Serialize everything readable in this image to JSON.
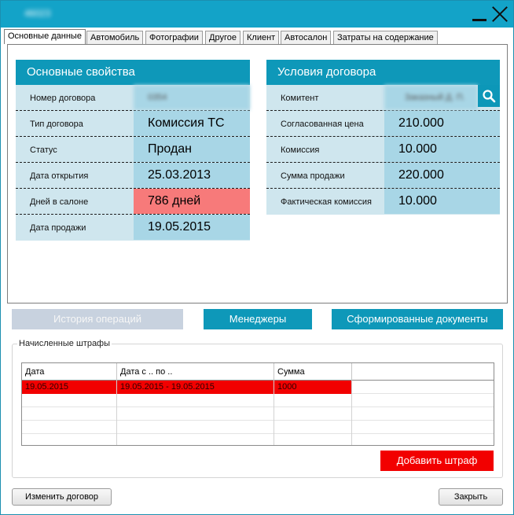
{
  "window": {
    "title": "46023"
  },
  "tabs": [
    {
      "label": "Основные данные"
    },
    {
      "label": "Автомобиль"
    },
    {
      "label": "Фотографии"
    },
    {
      "label": "Другое"
    },
    {
      "label": "Клиент"
    },
    {
      "label": "Автосалон"
    },
    {
      "label": "Затраты на содержание"
    }
  ],
  "basic": {
    "title": "Основные свойства",
    "rows": [
      {
        "label": "Номер договора",
        "value": "0354"
      },
      {
        "label": "Тип договора",
        "value": "Комиссия ТС"
      },
      {
        "label": "Статус",
        "value": "Продан"
      },
      {
        "label": "Дата открытия",
        "value": "25.03.2013"
      },
      {
        "label": "Дней в салоне",
        "value": "786 дней"
      },
      {
        "label": "Дата продажи",
        "value": "19.05.2015"
      }
    ]
  },
  "contract": {
    "title": "Условия договора",
    "rows": [
      {
        "label": "Комитент",
        "value": "Заказный Д. П."
      },
      {
        "label": "Согласованная цена",
        "value": "210.000"
      },
      {
        "label": "Комиссия",
        "value": "10.000"
      },
      {
        "label": "Сумма продажи",
        "value": "220.000"
      },
      {
        "label": "Фактическая комиссия",
        "value": "10.000"
      }
    ]
  },
  "actions": {
    "history": "История операций",
    "managers": "Менеджеры",
    "documents": "Сформированные документы"
  },
  "fines": {
    "legend": "Начисленные штрафы",
    "columns": [
      "Дата",
      "Дата с .. по ..",
      "Сумма"
    ],
    "rows": [
      {
        "date": "19.05.2015",
        "range": "19.05.2015 - 19.05.2015",
        "sum": "1000"
      }
    ],
    "add_button": "Добавить штраф"
  },
  "footer": {
    "edit_button": "Изменить договор",
    "close_button": "Закрыть"
  },
  "colors": {
    "accent": "#0e98b9",
    "alert": "#f77a7a",
    "danger": "#f20000"
  }
}
